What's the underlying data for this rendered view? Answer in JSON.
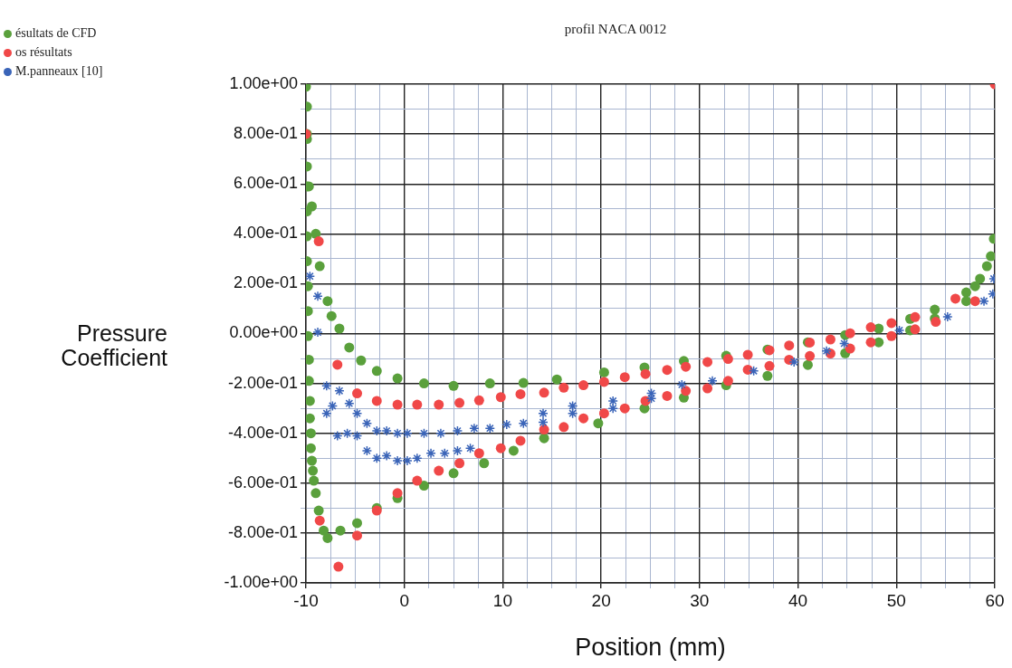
{
  "chart_data": {
    "type": "scatter",
    "title": "profil NACA 0012",
    "xlabel": "Position (mm)",
    "ylabel": "Pressure Coefficient",
    "xlim": [
      -10,
      60
    ],
    "ylim": [
      -1,
      1
    ],
    "xticks": [
      -10,
      {
        "value": -7.5,
        "label": null
      },
      {
        "value": -5,
        "label": null
      },
      {
        "value": -2.5,
        "label": null
      },
      0,
      {
        "value": 2.5,
        "label": null
      },
      {
        "value": 5,
        "label": null
      },
      {
        "value": 7.5,
        "label": null
      },
      10,
      {
        "value": 12.5,
        "label": null
      },
      {
        "value": 15,
        "label": null
      },
      {
        "value": 17.5,
        "label": null
      },
      20,
      {
        "value": 22.5,
        "label": null
      },
      {
        "value": 25,
        "label": null
      },
      {
        "value": 27.5,
        "label": null
      },
      30,
      {
        "value": 32.5,
        "label": null
      },
      {
        "value": 35,
        "label": null
      },
      {
        "value": 37.5,
        "label": null
      },
      40,
      {
        "value": 42.5,
        "label": null
      },
      {
        "value": 45,
        "label": null
      },
      {
        "value": 47.5,
        "label": null
      },
      50,
      {
        "value": 52.5,
        "label": null
      },
      {
        "value": 55,
        "label": null
      },
      {
        "value": 57.5,
        "label": null
      },
      60
    ],
    "yticks": [
      {
        "value": -1,
        "label": "-1.00e+00"
      },
      {
        "value": -0.9,
        "label": null
      },
      {
        "value": -0.8,
        "label": "-8.00e-01"
      },
      {
        "value": -0.7,
        "label": null
      },
      {
        "value": -0.6,
        "label": "-6.00e-01"
      },
      {
        "value": -0.5,
        "label": null
      },
      {
        "value": -0.4,
        "label": "-4.00e-01"
      },
      {
        "value": -0.3,
        "label": null
      },
      {
        "value": -0.2,
        "label": "-2.00e-01"
      },
      {
        "value": -0.1,
        "label": null
      },
      {
        "value": 0,
        "label": "0.00e+00"
      },
      {
        "value": 0.1,
        "label": null
      },
      {
        "value": 0.2,
        "label": "2.00e-01"
      },
      {
        "value": 0.3,
        "label": null
      },
      {
        "value": 0.4,
        "label": "4.00e-01"
      },
      {
        "value": 0.5,
        "label": null
      },
      {
        "value": 0.6,
        "label": "6.00e-01"
      },
      {
        "value": 0.7,
        "label": null
      },
      {
        "value": 0.8,
        "label": "8.00e-01"
      },
      {
        "value": 0.9,
        "label": null
      },
      {
        "value": 1,
        "label": "1.00e+00"
      }
    ],
    "grid": true,
    "legend": "top left",
    "series": [
      {
        "name": "ésultats de CFD",
        "color": "#5aa03c",
        "marker": "circle",
        "x": [
          -10,
          -9.9,
          -9.9,
          -9.7,
          -9.4,
          -9.0,
          -8.6,
          -7.8,
          -7.4,
          -6.6,
          -5.6,
          -4.4,
          -2.8,
          -0.7,
          2.0,
          5.0,
          8.7,
          12.1,
          15.5,
          20.3,
          24.4,
          28.4,
          32.7,
          36.9,
          41.0,
          44.8,
          48.2,
          51.4,
          53.9,
          57.1,
          58.0,
          58.5,
          59.2,
          59.6,
          59.9,
          -9.9,
          -9.9,
          -9.9,
          -9.9,
          -9.9,
          -9.9,
          -9.8,
          -9.8,
          -9.8,
          -9.7,
          -9.7,
          -9.6,
          -9.6,
          -9.5,
          -9.5,
          -9.4,
          -9.3,
          -9.2,
          -9.0,
          -8.7,
          -8.2,
          -7.8,
          -6.5,
          -4.8,
          -2.8,
          -0.7,
          2.0,
          5.0,
          8.1,
          11.1,
          14.2,
          19.7,
          24.4,
          28.4,
          32.7,
          36.9,
          41.0,
          44.8,
          48.2,
          51.4,
          53.9,
          57.1
        ],
        "values": [
          0.99,
          0.8,
          0.67,
          0.59,
          0.51,
          0.4,
          0.27,
          0.13,
          0.07,
          0.02,
          -0.056,
          -0.108,
          -0.15,
          -0.18,
          -0.2,
          -0.21,
          -0.2,
          -0.198,
          -0.184,
          -0.156,
          -0.136,
          -0.11,
          -0.089,
          -0.064,
          -0.035,
          -0.006,
          0.02,
          0.059,
          0.096,
          0.165,
          0.19,
          0.22,
          0.27,
          0.31,
          0.38,
          0.91,
          0.78,
          0.59,
          0.49,
          0.39,
          0.29,
          0.19,
          0.09,
          -0.01,
          -0.105,
          -0.19,
          -0.27,
          -0.34,
          -0.4,
          -0.46,
          -0.51,
          -0.55,
          -0.59,
          -0.64,
          -0.71,
          -0.79,
          -0.82,
          -0.79,
          -0.76,
          -0.7,
          -0.66,
          -0.61,
          -0.56,
          -0.52,
          -0.47,
          -0.42,
          -0.36,
          -0.3,
          -0.257,
          -0.207,
          -0.17,
          -0.126,
          -0.079,
          -0.035,
          0.013,
          0.06,
          0.13
        ]
      },
      {
        "name": "os résultats",
        "color": "#f04848",
        "marker": "circle",
        "x": [
          -10,
          -8.7,
          -6.8,
          -4.8,
          -2.8,
          -0.7,
          1.3,
          3.5,
          5.6,
          7.6,
          9.8,
          11.8,
          14.2,
          16.2,
          18.2,
          20.3,
          22.4,
          24.5,
          26.7,
          28.6,
          30.8,
          32.9,
          34.9,
          37.1,
          39.1,
          41.2,
          43.3,
          45.3,
          47.4,
          49.5,
          51.9,
          56.0,
          58.0,
          60,
          -8.6,
          -6.7,
          -4.8,
          -2.8,
          -0.7,
          1.3,
          3.5,
          5.6,
          7.6,
          9.8,
          11.8,
          14.2,
          16.2,
          18.2,
          20.3,
          22.4,
          24.5,
          26.7,
          28.6,
          30.8,
          32.9,
          34.9,
          37.1,
          39.1,
          41.2,
          43.3,
          45.3,
          47.4,
          49.5,
          51.9,
          54.0
        ],
        "values": [
          0.8,
          0.37,
          -0.125,
          -0.24,
          -0.27,
          -0.285,
          -0.285,
          -0.285,
          -0.278,
          -0.268,
          -0.255,
          -0.243,
          -0.237,
          -0.217,
          -0.207,
          -0.194,
          -0.175,
          -0.162,
          -0.146,
          -0.133,
          -0.114,
          -0.102,
          -0.085,
          -0.067,
          -0.048,
          -0.036,
          -0.024,
          0.001,
          0.025,
          0.042,
          0.066,
          0.14,
          0.13,
          1.0,
          -0.75,
          -0.935,
          -0.81,
          -0.71,
          -0.64,
          -0.59,
          -0.55,
          -0.52,
          -0.48,
          -0.46,
          -0.43,
          -0.385,
          -0.375,
          -0.34,
          -0.32,
          -0.3,
          -0.27,
          -0.25,
          -0.23,
          -0.22,
          -0.19,
          -0.145,
          -0.13,
          -0.105,
          -0.09,
          -0.08,
          -0.06,
          -0.035,
          -0.01,
          0.017,
          0.047
        ]
      },
      {
        "name": "M.panneaux [10]",
        "color": "#3a64b8",
        "marker": "cross",
        "x": [
          -9.6,
          -8.8,
          -8.8,
          -7.9,
          -6.6,
          -7.3,
          -7.9,
          -5.6,
          -4.8,
          -3.8,
          -6.8,
          -5.8,
          -4.8,
          -2.8,
          -1.8,
          -0.7,
          0.3,
          2.0,
          3.7,
          5.4,
          7.1,
          8.7,
          10.4,
          12.1,
          14.1,
          17.1,
          21.2,
          25.1,
          -3.8,
          -2.8,
          -1.8,
          -0.7,
          0.3,
          1.3,
          2.7,
          4.1,
          5.4,
          6.7,
          14.1,
          17.1,
          21.2,
          25.1,
          28.2,
          31.3,
          35.5,
          39.6,
          42.9,
          44.7,
          50.3,
          55.2,
          58.9,
          59.8,
          59.9
        ],
        "values": [
          0.23,
          0.15,
          0.005,
          -0.21,
          -0.23,
          -0.29,
          -0.32,
          -0.28,
          -0.32,
          -0.36,
          -0.41,
          -0.4,
          -0.41,
          -0.39,
          -0.39,
          -0.4,
          -0.4,
          -0.4,
          -0.4,
          -0.39,
          -0.38,
          -0.38,
          -0.365,
          -0.36,
          -0.32,
          -0.29,
          -0.27,
          -0.24,
          -0.47,
          -0.5,
          -0.49,
          -0.51,
          -0.51,
          -0.5,
          -0.48,
          -0.48,
          -0.47,
          -0.46,
          -0.356,
          -0.32,
          -0.3,
          -0.26,
          -0.205,
          -0.19,
          -0.15,
          -0.114,
          -0.07,
          -0.04,
          0.013,
          0.067,
          0.13,
          0.159,
          0.22
        ]
      }
    ]
  }
}
